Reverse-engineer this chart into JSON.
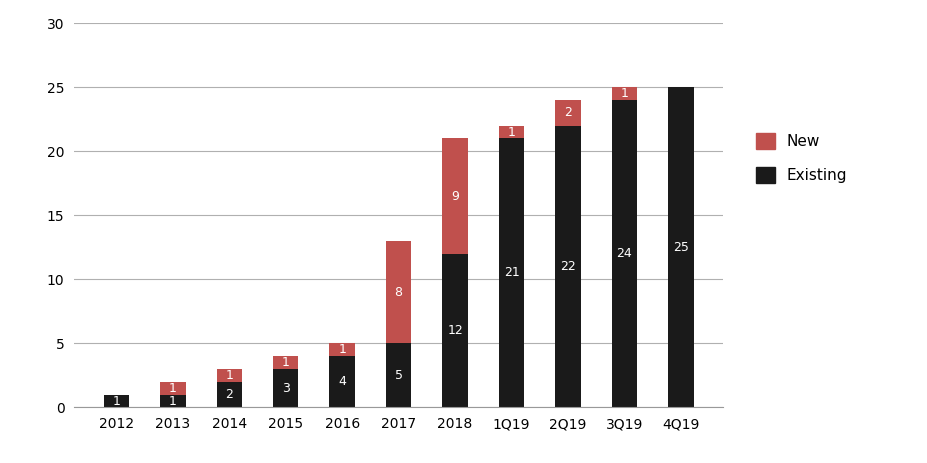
{
  "categories": [
    "2012",
    "2013",
    "2014",
    "2015",
    "2016",
    "2017",
    "2018",
    "1Q19",
    "2Q19",
    "3Q19",
    "4Q19"
  ],
  "existing": [
    1,
    1,
    2,
    3,
    4,
    5,
    12,
    21,
    22,
    24,
    25
  ],
  "new": [
    0,
    1,
    1,
    1,
    1,
    8,
    9,
    1,
    2,
    1,
    0
  ],
  "existing_color": "#1a1a1a",
  "new_color": "#c0504d",
  "ylim": [
    0,
    30
  ],
  "yticks": [
    0,
    5,
    10,
    15,
    20,
    25,
    30
  ],
  "legend_labels": [
    "New",
    "Existing"
  ],
  "legend_colors": [
    "#c0504d",
    "#1a1a1a"
  ],
  "bar_width": 0.45,
  "label_fontsize": 9,
  "tick_fontsize": 10,
  "legend_fontsize": 11,
  "background_color": "#ffffff",
  "grid_color": "#b0b0b0"
}
